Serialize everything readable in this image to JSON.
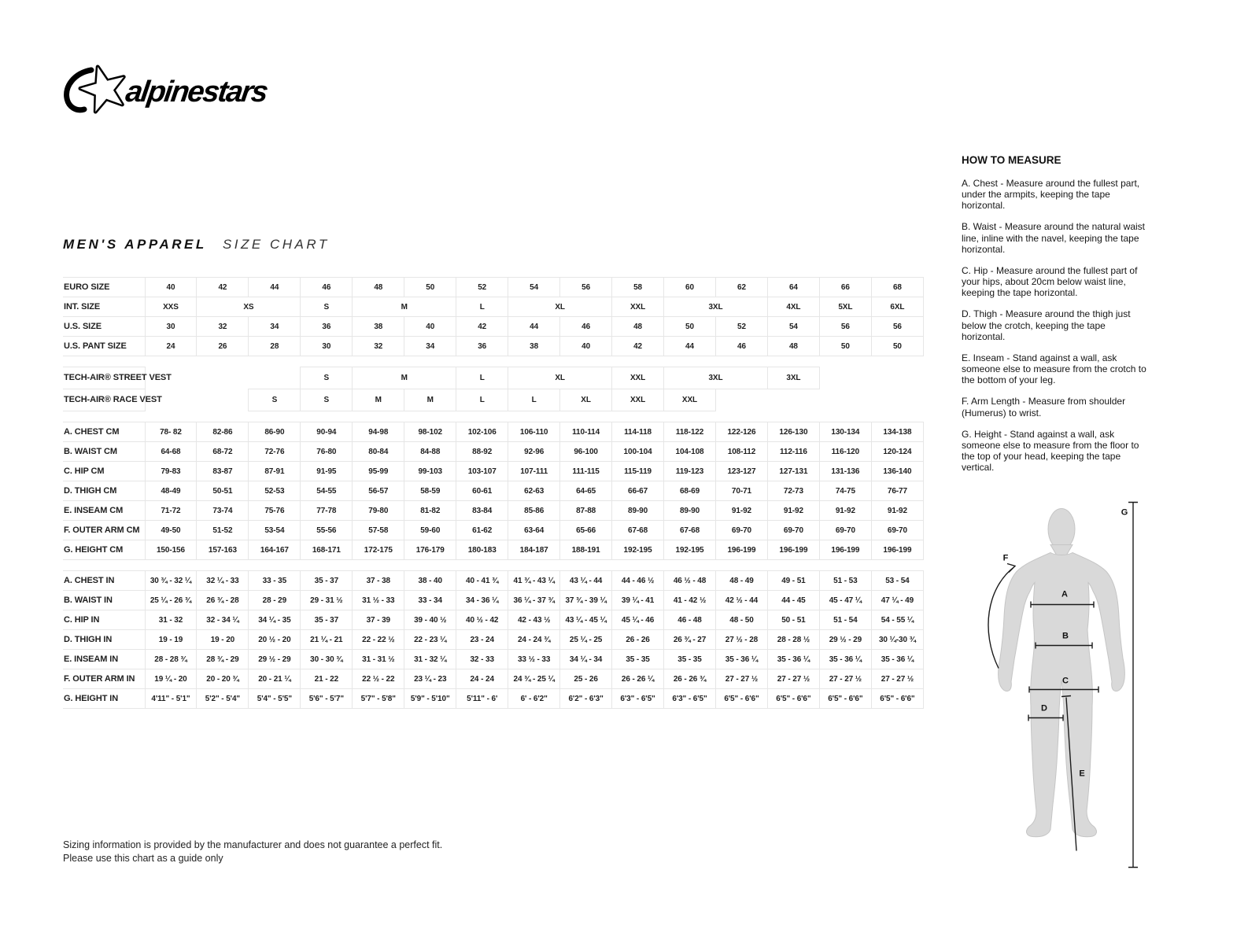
{
  "brand": {
    "name": "alpinestars"
  },
  "title": {
    "primary": "MEN'S APPAREL",
    "secondary": "SIZE CHART"
  },
  "table": {
    "sections": [
      {
        "name": "primary_sizes",
        "rows": [
          {
            "label": "EURO SIZE",
            "cells": [
              "40",
              "42",
              "44",
              "46",
              "48",
              "50",
              "52",
              "54",
              "56",
              "58",
              "60",
              "62",
              "64",
              "66",
              "68"
            ]
          },
          {
            "label": "INT. SIZE",
            "cells": [
              {
                "t": "XXS"
              },
              {
                "t": "XS",
                "s": 2
              },
              {
                "t": "S"
              },
              {
                "t": "M",
                "s": 2
              },
              {
                "t": "L"
              },
              {
                "t": "XL",
                "s": 2
              },
              {
                "t": "XXL"
              },
              {
                "t": "3XL",
                "s": 2
              },
              {
                "t": "4XL"
              },
              {
                "t": "5XL"
              },
              {
                "t": "6XL"
              }
            ]
          },
          {
            "label": "U.S. SIZE",
            "cells": [
              "30",
              "32",
              "34",
              "36",
              "38",
              "40",
              "42",
              "44",
              "46",
              "48",
              "50",
              "52",
              "54",
              "56",
              "56"
            ]
          },
          {
            "label": "U.S. PANT SIZE",
            "cells": [
              "24",
              "26",
              "28",
              "30",
              "32",
              "34",
              "36",
              "38",
              "40",
              "42",
              "44",
              "46",
              "48",
              "50",
              "50"
            ]
          }
        ]
      },
      {
        "name": "tech_air",
        "rows": [
          {
            "label": "TECH-AIR® STREET VEST",
            "cells": [
              {
                "t": "",
                "s": 3
              },
              {
                "t": "S"
              },
              {
                "t": "M",
                "s": 2
              },
              {
                "t": "L"
              },
              {
                "t": "XL",
                "s": 2
              },
              {
                "t": "XXL"
              },
              {
                "t": "3XL",
                "s": 2
              },
              {
                "t": "3XL"
              },
              {
                "t": "",
                "s": 2
              }
            ]
          },
          {
            "label": "TECH-AIR® RACE VEST",
            "cells": [
              {
                "t": "",
                "s": 2
              },
              {
                "t": "S"
              },
              {
                "t": "S"
              },
              {
                "t": "M"
              },
              {
                "t": "M"
              },
              {
                "t": "L"
              },
              {
                "t": "L"
              },
              {
                "t": "XL"
              },
              {
                "t": "XXL"
              },
              {
                "t": "XXL"
              },
              {
                "t": "",
                "s": 4
              }
            ]
          }
        ]
      },
      {
        "name": "centimeters",
        "rows": [
          {
            "label": "A. CHEST CM",
            "cells": [
              "78- 82",
              "82-86",
              "86-90",
              "90-94",
              "94-98",
              "98-102",
              "102-106",
              "106-110",
              "110-114",
              "114-118",
              "118-122",
              "122-126",
              "126-130",
              "130-134",
              "134-138"
            ]
          },
          {
            "label": "B. WAIST CM",
            "cells": [
              "64-68",
              "68-72",
              "72-76",
              "76-80",
              "80-84",
              "84-88",
              "88-92",
              "92-96",
              "96-100",
              "100-104",
              "104-108",
              "108-112",
              "112-116",
              "116-120",
              "120-124"
            ]
          },
          {
            "label": "C. HIP CM",
            "cells": [
              "79-83",
              "83-87",
              "87-91",
              "91-95",
              "95-99",
              "99-103",
              "103-107",
              "107-111",
              "111-115",
              "115-119",
              "119-123",
              "123-127",
              "127-131",
              "131-136",
              "136-140"
            ]
          },
          {
            "label": "D. THIGH CM",
            "cells": [
              "48-49",
              "50-51",
              "52-53",
              "54-55",
              "56-57",
              "58-59",
              "60-61",
              "62-63",
              "64-65",
              "66-67",
              "68-69",
              "70-71",
              "72-73",
              "74-75",
              "76-77"
            ]
          },
          {
            "label": "E. INSEAM CM",
            "cells": [
              "71-72",
              "73-74",
              "75-76",
              "77-78",
              "79-80",
              "81-82",
              "83-84",
              "85-86",
              "87-88",
              "89-90",
              "89-90",
              "91-92",
              "91-92",
              "91-92",
              "91-92"
            ]
          },
          {
            "label": "F. OUTER ARM CM",
            "cells": [
              "49-50",
              "51-52",
              "53-54",
              "55-56",
              "57-58",
              "59-60",
              "61-62",
              "63-64",
              "65-66",
              "67-68",
              "67-68",
              "69-70",
              "69-70",
              "69-70",
              "69-70"
            ]
          },
          {
            "label": "G. HEIGHT CM",
            "cells": [
              "150-156",
              "157-163",
              "164-167",
              "168-171",
              "172-175",
              "176-179",
              "180-183",
              "184-187",
              "188-191",
              "192-195",
              "192-195",
              "196-199",
              "196-199",
              "196-199",
              "196-199"
            ]
          }
        ]
      },
      {
        "name": "inches",
        "rows": [
          {
            "label": "A. CHEST IN",
            "cells": [
              "30 ¾ - 32 ¼",
              "32 ¼ - 33",
              "33 - 35",
              "35 - 37",
              "37 - 38",
              "38 - 40",
              "40 - 41 ¾",
              "41 ¾ - 43 ¼",
              "43 ¼ - 44",
              "44 - 46 ½",
              "46 ½ - 48",
              "48 - 49",
              "49 - 51",
              "51 - 53",
              "53 - 54"
            ]
          },
          {
            "label": "B. WAIST IN",
            "cells": [
              "25 ¼ - 26 ¾",
              "26 ¾ - 28",
              "28 - 29",
              "29 - 31 ½",
              "31 ½ - 33",
              "33 - 34",
              "34 - 36 ¼",
              "36 ¼ - 37 ¾",
              "37 ¾ - 39 ¼",
              "39 ¼ - 41",
              "41 - 42 ½",
              "42 ½ - 44",
              "44 - 45",
              "45 - 47 ¼",
              "47 ¼ - 49"
            ]
          },
          {
            "label": "C. HIP IN",
            "cells": [
              "31 - 32",
              "32 - 34 ¼",
              "34 ¼ - 35",
              "35 - 37",
              "37 - 39",
              "39 - 40 ½",
              "40 ½ - 42",
              "42 - 43 ½",
              "43 ¼ - 45 ¼",
              "45 ¼ - 46",
              "46 - 48",
              "48 - 50",
              "50 - 51",
              "51 - 54",
              "54 - 55 ¼"
            ]
          },
          {
            "label": "D. THIGH IN",
            "cells": [
              "19 - 19",
              "19 - 20",
              "20 ½ - 20",
              "21 ¼ - 21",
              "22 - 22 ½",
              "22 - 23 ¼",
              "23 - 24",
              "24 - 24 ¾",
              "25 ¼ - 25",
              "26 - 26",
              "26 ¾ - 27",
              "27 ½ - 28",
              "28 - 28 ½",
              "29 ½ - 29",
              "30 ¼-30 ¾"
            ]
          },
          {
            "label": "E. INSEAM IN",
            "cells": [
              "28 - 28 ¾",
              "28 ¾ - 29",
              "29 ½ - 29",
              "30 - 30 ¾",
              "31 - 31 ½",
              "31 - 32 ¼",
              "32 - 33",
              "33 ½ - 33",
              "34 ¼ - 34",
              "35 - 35",
              "35 - 35",
              "35 - 36 ¼",
              "35 - 36 ¼",
              "35 - 36 ¼",
              "35 - 36 ¼"
            ]
          },
          {
            "label": "F. OUTER ARM IN",
            "cells": [
              "19 ¼ - 20",
              "20 - 20 ¾",
              "20 - 21 ¼",
              "21 - 22",
              "22 ½ - 22",
              "23 ¼ - 23",
              "24 - 24",
              "24 ¾ - 25 ¼",
              "25 - 26",
              "26 - 26 ¼",
              "26 - 26 ¾",
              "27 - 27 ½",
              "27 - 27 ½",
              "27 - 27 ½",
              "27 - 27 ½"
            ]
          },
          {
            "label": "G. HEIGHT IN",
            "cells": [
              "4'11\" - 5'1\"",
              "5'2\" - 5'4\"",
              "5'4\" - 5'5\"",
              "5'6\" - 5'7\"",
              "5'7\" - 5'8\"",
              "5'9\" - 5'10\"",
              "5'11\" - 6'",
              "6' - 6'2\"",
              "6'2\" - 6'3\"",
              "6'3\" - 6'5\"",
              "6'3\" - 6'5\"",
              "6'5\" - 6'6\"",
              "6'5\" - 6'6\"",
              "6'5\" - 6'6\"",
              "6'5\" - 6'6\""
            ]
          }
        ]
      }
    ]
  },
  "how_to_measure": {
    "heading": "HOW TO MEASURE",
    "items": [
      "A. Chest - Measure around the fullest part, under the armpits, keeping the tape horizontal.",
      "B. Waist - Measure around the natural waist line, inline with the navel, keeping the tape horizontal.",
      "C. Hip - Measure around the fullest part of your hips, about 20cm below waist line, keeping the tape horizontal.",
      "D. Thigh - Measure around the thigh just below the crotch, keeping the tape horizontal.",
      "E. Inseam - Stand against a wall, ask someone else to measure from the crotch to the bottom of your leg.",
      "F. Arm Length - Measure from shoulder (Humerus) to wrist.",
      "G. Height - Stand against a wall, ask someone else to measure from the floor to the top of your head, keeping the tape vertical."
    ]
  },
  "diagram": {
    "labels": [
      "A",
      "B",
      "C",
      "D",
      "E",
      "F",
      "G"
    ]
  },
  "footer": {
    "line1": "Sizing information is provided by the manufacturer and does not guarantee a perfect fit.",
    "line2": "Please use this chart as a guide only"
  },
  "colors": {
    "figure_fill": "#d9d9d9",
    "figure_outline": "#c5c5c5",
    "grid_line": "#e6e6e6",
    "ink": "#1a1a1a"
  }
}
